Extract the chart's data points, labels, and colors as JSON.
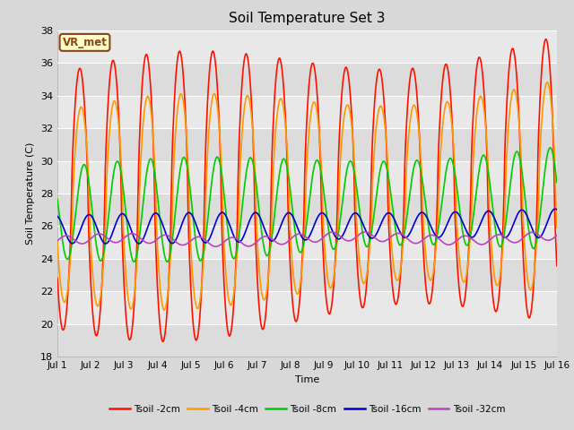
{
  "title": "Soil Temperature Set 3",
  "xlabel": "Time",
  "ylabel": "Soil Temperature (C)",
  "ylim": [
    18,
    38
  ],
  "yticks": [
    18,
    20,
    22,
    24,
    26,
    28,
    30,
    32,
    34,
    36,
    38
  ],
  "x_labels": [
    "Jul 1",
    "Jul 2",
    "Jul 3",
    "Jul 4",
    "Jul 5",
    "Jul 6",
    "Jul 7",
    "Jul 8",
    "Jul 9",
    "Jul 10",
    "Jul 11",
    "Jul 12",
    "Jul 13",
    "Jul 14",
    "Jul 15",
    "Jul 16"
  ],
  "bg_color": "#d8d8d8",
  "plot_bg_light": "#e8e8e8",
  "plot_bg_dark": "#d8d8d8",
  "annotation_text": "VR_met",
  "annotation_bg": "#ffffcc",
  "annotation_border": "#8b4513",
  "series": {
    "Tsoil -2cm": {
      "color": "#ff1100",
      "lw": 1.2
    },
    "Tsoil -4cm": {
      "color": "#ff9900",
      "lw": 1.2
    },
    "Tsoil -8cm": {
      "color": "#00cc00",
      "lw": 1.2
    },
    "Tsoil -16cm": {
      "color": "#0000cc",
      "lw": 1.2
    },
    "Tsoil -32cm": {
      "color": "#bb44bb",
      "lw": 1.2
    }
  },
  "n_points": 720,
  "title_fontsize": 11,
  "label_fontsize": 8,
  "tick_fontsize": 8
}
